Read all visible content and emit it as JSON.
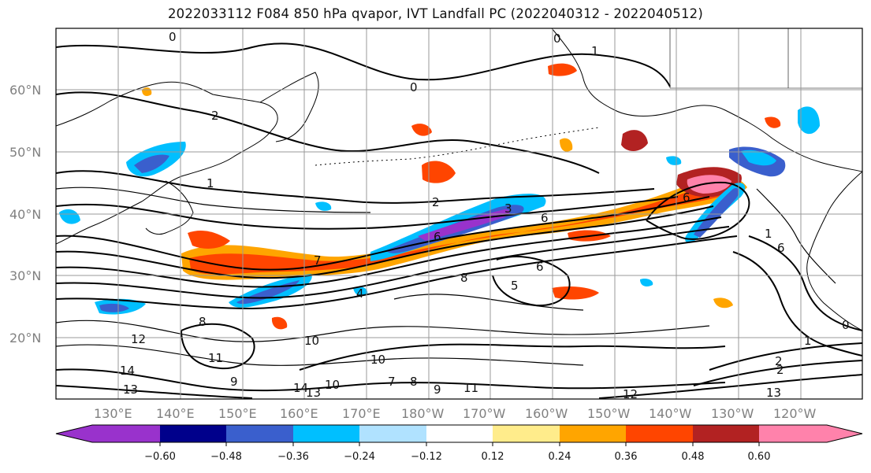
{
  "title": "2022033112 F084 850 hPa qvapor, IVT Landfall PC (2022040312 - 2022040512)",
  "lat_labels": [
    "60°N",
    "50°N",
    "40°N",
    "30°N",
    "20°N"
  ],
  "lon_labels": [
    "130°E",
    "140°E",
    "150°E",
    "160°E",
    "170°E",
    "180°W",
    "170°W",
    "160°W",
    "150°W",
    "140°W",
    "130°W",
    "120°W"
  ],
  "contour_labels": [
    "0",
    "0",
    "1",
    "0",
    "2",
    "1",
    "2",
    "3",
    "6",
    "6",
    "6",
    "7",
    "8",
    "5",
    "6",
    "4",
    "1",
    "6",
    "2",
    "10",
    "11",
    "10",
    "9",
    "14",
    "13",
    "14",
    "13",
    "10",
    "7",
    "8",
    "9",
    "11",
    "12",
    "13",
    "12",
    "2",
    "0",
    "1",
    "8"
  ],
  "colorbar": {
    "ticks": [
      "−0.60",
      "−0.48",
      "−0.36",
      "−0.24",
      "−0.12",
      "0.12",
      "0.24",
      "0.36",
      "0.48",
      "0.60"
    ],
    "colors": {
      "lt_m060": "#9932cc",
      "m060_m048": "#00008b",
      "m048_m036": "#3a5fcd",
      "m036_m024": "#00bfff",
      "m024_m012": "#b0e2ff",
      "m012_p012": "#ffffff",
      "p012_p024": "#ffec8b",
      "p024_p036": "#ffa500",
      "p036_p048": "#ff4500",
      "p048_p060": "#b22222",
      "gt_p060": "#ff82ab"
    }
  }
}
